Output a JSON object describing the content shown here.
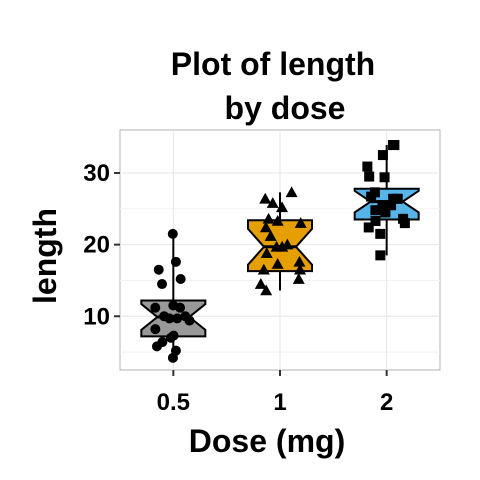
{
  "chart_data": {
    "type": "boxplot",
    "title_lines": [
      "Plot of length",
      "by dose"
    ],
    "xlabel": "Dose (mg)",
    "ylabel": "length",
    "categories": [
      "0.5",
      "1",
      "2"
    ],
    "ylim": [
      2.5,
      36
    ],
    "yticks": [
      "10",
      "20",
      "30"
    ],
    "grid": true,
    "legend": "none",
    "box_colors": [
      "#999999",
      "#E69F00",
      "#56B4E9"
    ],
    "marker_shapes": [
      "circle",
      "triangle",
      "square"
    ],
    "boxes": [
      {
        "category": "0.5",
        "min": 4.2,
        "q1": 7.2,
        "median": 9.9,
        "q3": 12.2,
        "max": 21.5,
        "notch_low": 8.1,
        "notch_high": 11.7
      },
      {
        "category": "1",
        "min": 13.6,
        "q1": 16.3,
        "median": 19.7,
        "q3": 23.4,
        "max": 27.3,
        "notch_low": 17.2,
        "notch_high": 22.2
      },
      {
        "category": "2",
        "min": 18.5,
        "q1": 23.5,
        "median": 26.0,
        "q3": 27.8,
        "max": 33.9,
        "notch_low": 24.5,
        "notch_high": 27.5
      }
    ],
    "points": [
      {
        "category": "0.5",
        "values": [
          4.2,
          5.2,
          5.8,
          6.4,
          7.0,
          7.3,
          8.2,
          9.4,
          9.7,
          9.7,
          10.0,
          10.0,
          11.2,
          11.2,
          11.5,
          14.5,
          15.2,
          16.5,
          17.6,
          21.5
        ]
      },
      {
        "category": "1",
        "values": [
          13.6,
          14.5,
          15.2,
          16.5,
          16.5,
          17.3,
          17.6,
          18.8,
          19.7,
          19.7,
          20.0,
          21.2,
          22.4,
          23.0,
          23.3,
          23.6,
          25.2,
          25.8,
          26.4,
          27.3
        ]
      },
      {
        "category": "2",
        "values": [
          18.5,
          21.5,
          22.4,
          23.0,
          23.3,
          23.6,
          24.5,
          24.8,
          25.5,
          25.5,
          26.4,
          26.4,
          26.7,
          27.3,
          29.4,
          29.5,
          30.9,
          32.5,
          33.9,
          33.9
        ]
      }
    ]
  }
}
